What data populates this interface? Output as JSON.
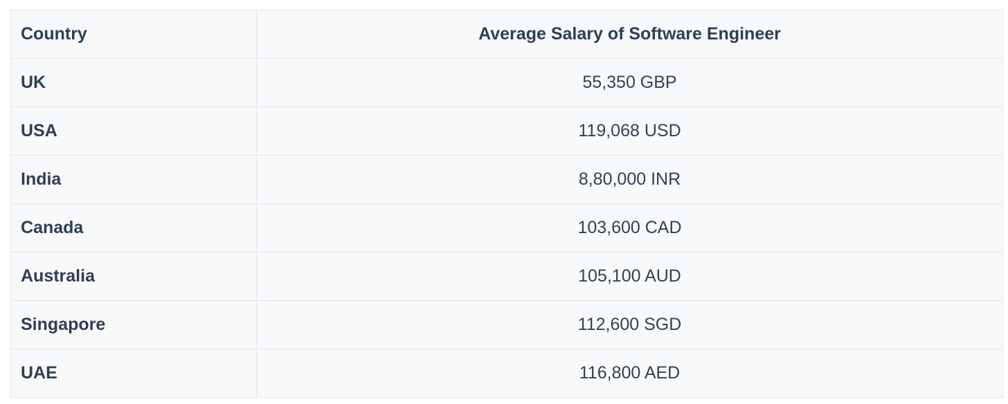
{
  "table": {
    "headers": {
      "country": "Country",
      "salary": "Average Salary of Software Engineer"
    },
    "rows": [
      {
        "country": "UK",
        "salary": "55,350 GBP"
      },
      {
        "country": "USA",
        "salary": "119,068 USD"
      },
      {
        "country": "India",
        "salary": "8,80,000 INR"
      },
      {
        "country": "Canada",
        "salary": "103,600 CAD"
      },
      {
        "country": "Australia",
        "salary": "105,100 AUD"
      },
      {
        "country": "Singapore",
        "salary": "112,600 SGD"
      },
      {
        "country": "UAE",
        "salary": "116,800 AED"
      }
    ]
  },
  "colors": {
    "background": "#f8f9fb",
    "border": "#e2e5ea",
    "text": "#2f3e52"
  }
}
